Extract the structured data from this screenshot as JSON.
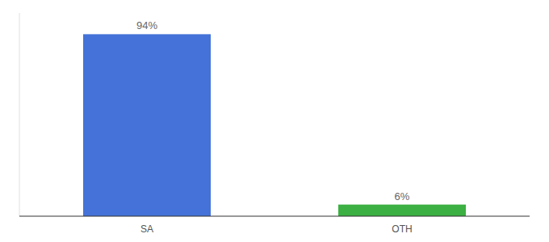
{
  "chart_data": {
    "type": "bar",
    "categories": [
      "SA",
      "OTH"
    ],
    "values": [
      94,
      6
    ],
    "value_labels": [
      "94%",
      "6%"
    ],
    "colors": [
      "#4472D8",
      "#3CB043"
    ],
    "ylim": [
      0,
      105
    ],
    "data_labels": true,
    "tick_labels": "x"
  }
}
